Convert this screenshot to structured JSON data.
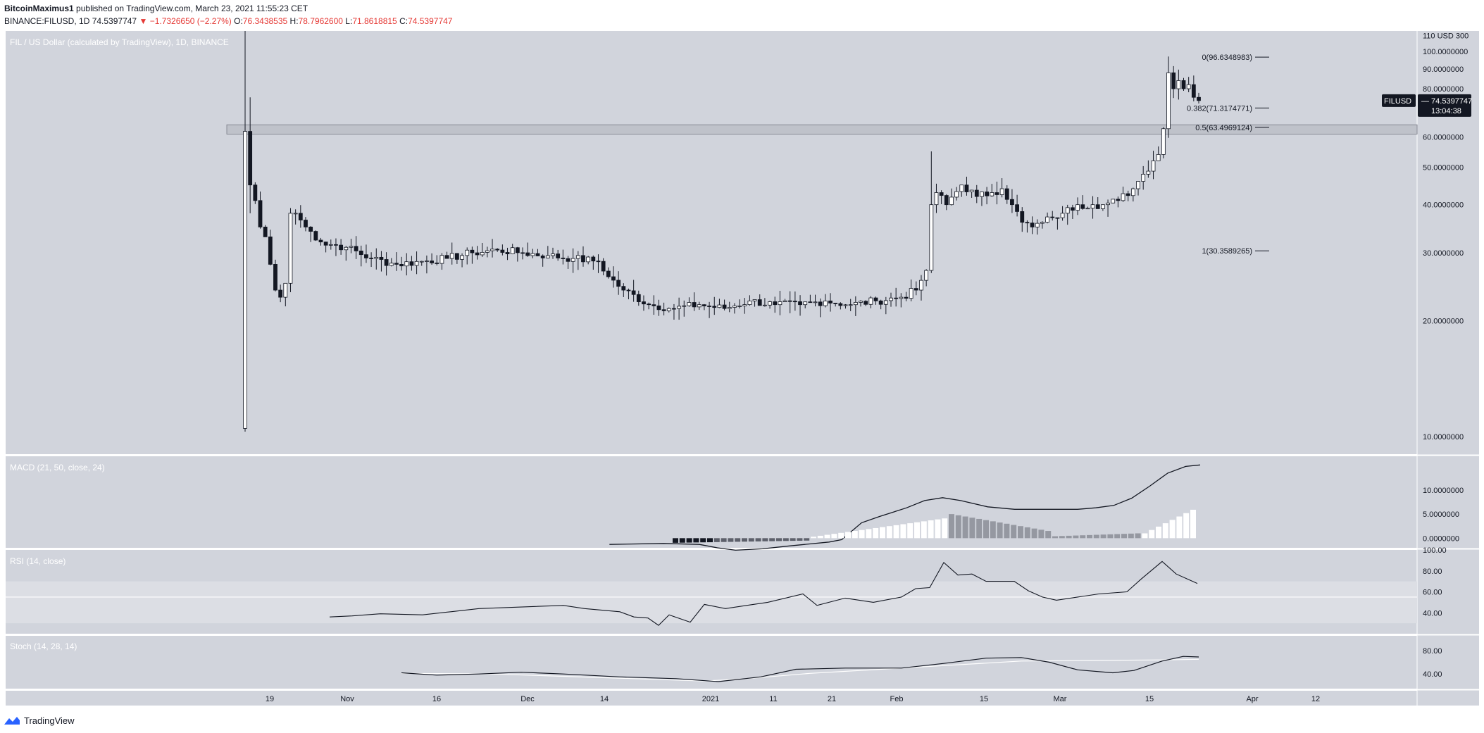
{
  "header": {
    "line1_author": "BitcoinMaximus1",
    "line1_rest": "published on TradingView.com, March 23, 2021 11:55:23 CET",
    "symbol": "BINANCE:FILUSD, 1D",
    "last": "74.5397747",
    "arrow": "▼",
    "change": "−1.7326650 (−2.27%)",
    "o_label": "O:",
    "o_val": "76.3438535",
    "h_label": "H:",
    "h_val": "78.7962600",
    "l_label": "L:",
    "l_val": "71.8618815",
    "c_label": "C:",
    "c_val": "74.5397747"
  },
  "footer": {
    "brand": "TradingView"
  },
  "colors": {
    "pane_bg": "#d1d4dc",
    "candle_up": "#ffffff",
    "candle_down": "#131722",
    "line": "#131722",
    "text_red": "#e53935"
  },
  "chart_data": {
    "type": "candlestick",
    "title": "FIL / US Dollar (calculated by TradingView), 1D, BINANCE",
    "x_ticks": [
      "19",
      "Nov",
      "16",
      "Dec",
      "14",
      "2021",
      "11",
      "21",
      "Feb",
      "15",
      "Mar",
      "15",
      "Apr",
      "12"
    ],
    "price": {
      "scale": "log",
      "ylim": [
        9,
        113
      ],
      "y_ticks": [
        "110 USD 300",
        "100.0000000",
        "90.0000000",
        "80.0000000",
        "70.0000000",
        "60.0000000",
        "50.0000000",
        "40.0000000",
        "30.0000000",
        "20.0000000",
        "10.0000000"
      ],
      "last_price_label": "FILUSD",
      "last_price": "74.5397747",
      "countdown": "13:04:38",
      "support_zone": [
        61,
        64.5
      ],
      "fib_levels": [
        {
          "label": "0(96.6348983)",
          "value": 96.6348983
        },
        {
          "label": "0.382(71.3174771)",
          "value": 71.3174771
        },
        {
          "label": "0.5(63.4969124)",
          "value": 63.4969124
        },
        {
          "label": "1(30.3589265)",
          "value": 30.3589265
        }
      ],
      "keypoints": [
        [
          0,
          62
        ],
        [
          1,
          45
        ],
        [
          2,
          41
        ],
        [
          3,
          35
        ],
        [
          4,
          33
        ],
        [
          5,
          28
        ],
        [
          6,
          24
        ],
        [
          7,
          23
        ],
        [
          8,
          25
        ],
        [
          9,
          38
        ],
        [
          10,
          38
        ],
        [
          12,
          35
        ],
        [
          15,
          32
        ],
        [
          20,
          31
        ],
        [
          25,
          29
        ],
        [
          30,
          28
        ],
        [
          35,
          28.5
        ],
        [
          40,
          29
        ],
        [
          45,
          30
        ],
        [
          50,
          30.5
        ],
        [
          55,
          30
        ],
        [
          60,
          29.5
        ],
        [
          65,
          29
        ],
        [
          70,
          28.5
        ],
        [
          72,
          26
        ],
        [
          75,
          24
        ],
        [
          80,
          22
        ],
        [
          85,
          21.5
        ],
        [
          90,
          22
        ],
        [
          95,
          21.5
        ],
        [
          100,
          22.5
        ],
        [
          105,
          22
        ],
        [
          110,
          22
        ],
        [
          115,
          22.5
        ],
        [
          120,
          22
        ],
        [
          125,
          22.5
        ],
        [
          130,
          23
        ],
        [
          133,
          24
        ],
        [
          135,
          27
        ],
        [
          136,
          40
        ],
        [
          137,
          43
        ],
        [
          139,
          40
        ],
        [
          142,
          45
        ],
        [
          145,
          42
        ],
        [
          148,
          43
        ],
        [
          150,
          44
        ],
        [
          152,
          40
        ],
        [
          154,
          36
        ],
        [
          156,
          35
        ],
        [
          158,
          36
        ],
        [
          160,
          37
        ],
        [
          162,
          38
        ],
        [
          165,
          40
        ],
        [
          168,
          40
        ],
        [
          170,
          40
        ],
        [
          173,
          41
        ],
        [
          176,
          44
        ],
        [
          178,
          48
        ],
        [
          180,
          52
        ],
        [
          181,
          54
        ],
        [
          182,
          63
        ],
        [
          183,
          88
        ],
        [
          184,
          80
        ],
        [
          185,
          84
        ],
        [
          186,
          80
        ],
        [
          187,
          82
        ],
        [
          188,
          76
        ],
        [
          189,
          74.54
        ]
      ]
    },
    "macd": {
      "title": "MACD (21, 50, close, 24)",
      "y_ticks": [
        "10.0000000",
        "5.0000000",
        "0.0000000"
      ],
      "ylim": [
        -2,
        17
      ]
    },
    "rsi": {
      "title": "RSI (14, close)",
      "y_ticks": [
        "100.00",
        "80.00",
        "60.00",
        "40.00"
      ],
      "band": [
        30,
        70
      ],
      "ylim": [
        20,
        100
      ]
    },
    "stoch": {
      "title": "Stoch (14, 28, 14)",
      "y_ticks": [
        "80.00",
        "40.00"
      ],
      "ylim": [
        15,
        105
      ]
    }
  }
}
